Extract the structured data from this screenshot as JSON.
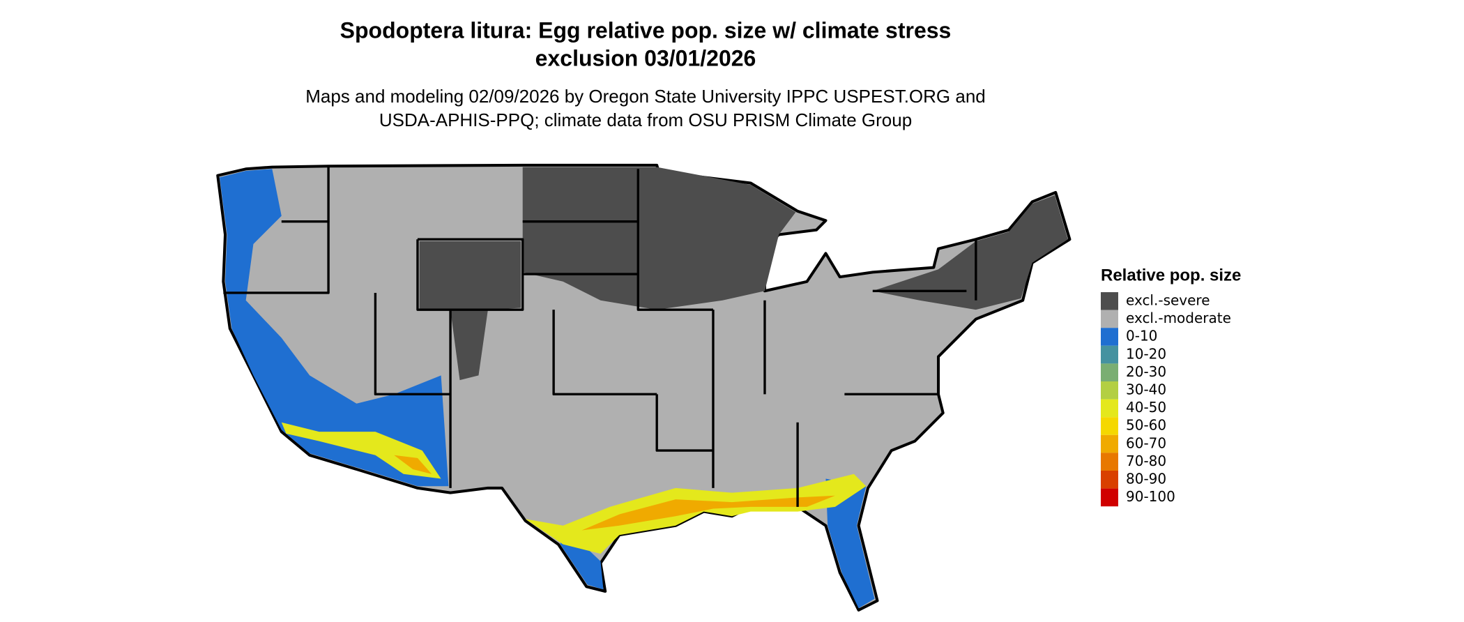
{
  "title": [
    "Spodoptera litura: Egg relative pop. size w/ climate stress",
    "exclusion 03/01/2026"
  ],
  "subtitle": [
    "Maps and modeling 02/09/2026 by Oregon State University IPPC USPEST.ORG and",
    "USDA-APHIS-PPQ; climate data from OSU PRISM Climate Group"
  ],
  "legend": {
    "title": "Relative pop. size",
    "items": [
      {
        "label": "excl.-severe",
        "color": "#4d4d4d"
      },
      {
        "label": "excl.-moderate",
        "color": "#b0b0b0"
      },
      {
        "label": "0-10",
        "color": "#1f6fd1"
      },
      {
        "label": "10-20",
        "color": "#4592a0"
      },
      {
        "label": "20-30",
        "color": "#7aae72"
      },
      {
        "label": "30-40",
        "color": "#b3cf42"
      },
      {
        "label": "40-50",
        "color": "#e4e81c"
      },
      {
        "label": "50-60",
        "color": "#f5d800"
      },
      {
        "label": "60-70",
        "color": "#f0aa00"
      },
      {
        "label": "70-80",
        "color": "#e87800"
      },
      {
        "label": "80-90",
        "color": "#d94000"
      },
      {
        "label": "90-100",
        "color": "#d00000"
      }
    ]
  }
}
